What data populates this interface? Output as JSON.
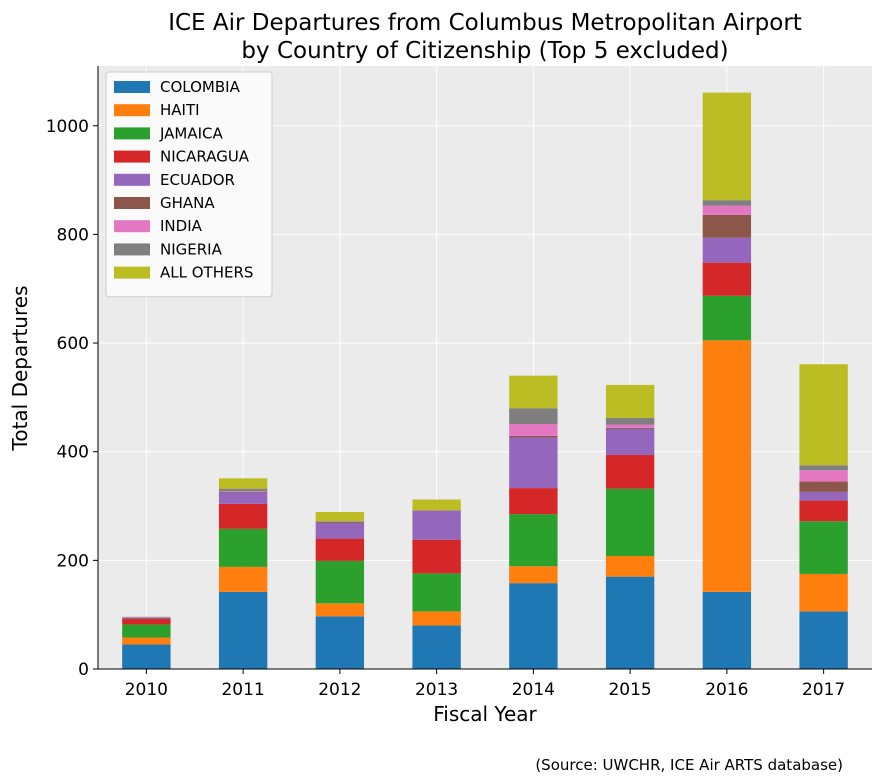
{
  "chart_data": {
    "type": "bar",
    "stacked": true,
    "title_line1": "ICE Air Departures from Columbus Metropolitan Airport",
    "title_line2": "by Country of Citizenship (Top 5 excluded)",
    "xlabel": "Fiscal Year",
    "ylabel": "Total Departures",
    "source": "(Source: UWCHR, ICE Air ARTS database)",
    "categories": [
      "2010",
      "2011",
      "2012",
      "2013",
      "2014",
      "2015",
      "2016",
      "2017"
    ],
    "ylim": [
      0,
      1110
    ],
    "yticks": [
      0,
      200,
      400,
      600,
      800,
      1000
    ],
    "grid": true,
    "legend_position": "top-left",
    "series": [
      {
        "name": "COLOMBIA",
        "color": "#1f77b4",
        "values": [
          45,
          142,
          97,
          80,
          158,
          170,
          142,
          106
        ]
      },
      {
        "name": "HAITI",
        "color": "#ff7f0e",
        "values": [
          13,
          46,
          24,
          26,
          31,
          38,
          463,
          69
        ]
      },
      {
        "name": "JAMAICA",
        "color": "#2ca02c",
        "values": [
          24,
          70,
          78,
          70,
          96,
          124,
          82,
          97
        ]
      },
      {
        "name": "NICARAGUA",
        "color": "#d62728",
        "values": [
          10,
          46,
          41,
          62,
          48,
          62,
          61,
          38
        ]
      },
      {
        "name": "ECUADOR",
        "color": "#9467bd",
        "values": [
          1,
          21,
          29,
          54,
          93,
          48,
          46,
          16
        ]
      },
      {
        "name": "GHANA",
        "color": "#8c564b",
        "values": [
          1,
          1,
          2,
          0,
          3,
          2,
          42,
          19
        ]
      },
      {
        "name": "INDIA",
        "color": "#e377c2",
        "values": [
          1,
          1,
          0,
          0,
          22,
          6,
          17,
          21
        ]
      },
      {
        "name": "NIGERIA",
        "color": "#7f7f7f",
        "values": [
          1,
          5,
          1,
          0,
          29,
          12,
          10,
          9
        ]
      },
      {
        "name": "ALL OTHERS",
        "color": "#bcbd22",
        "values": [
          0,
          19,
          17,
          20,
          60,
          61,
          198,
          186
        ]
      }
    ]
  }
}
